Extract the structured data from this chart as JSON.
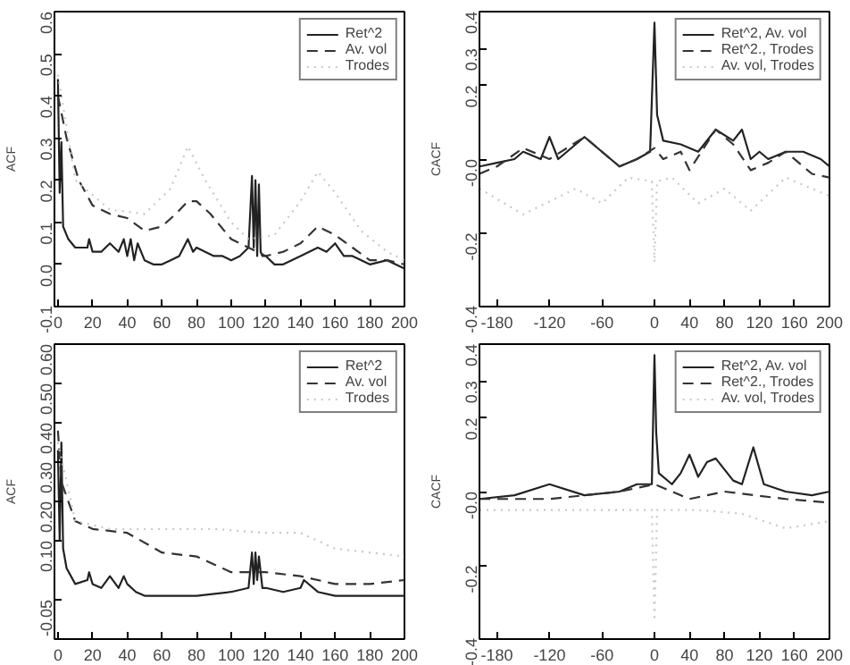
{
  "chart_data": [
    {
      "type": "line",
      "ylabel": "ACF",
      "xlim": [
        -2,
        200
      ],
      "ylim": [
        -0.1,
        0.6
      ],
      "xticks": [
        0,
        20,
        40,
        60,
        80,
        100,
        120,
        140,
        160,
        180,
        200
      ],
      "yticks": [
        -0.1,
        {
          "value": 0,
          "label": "0.0"
        },
        0.1,
        0.2,
        0.3,
        0.4,
        0.5,
        0.6
      ],
      "legend": "top right",
      "grid": false,
      "series": [
        {
          "name": "Ret^2",
          "color": "#222222",
          "line_style": "solid",
          "x": [
            0,
            1,
            2,
            3,
            6,
            10,
            17,
            18,
            20,
            25,
            30,
            35,
            38,
            40,
            42,
            44,
            46,
            50,
            55,
            60,
            65,
            70,
            75,
            78,
            80,
            85,
            90,
            95,
            100,
            105,
            110,
            112,
            113,
            114,
            115,
            116,
            117,
            118,
            120,
            125,
            130,
            140,
            150,
            155,
            160,
            165,
            170,
            180,
            190,
            200
          ],
          "values": [
            0.44,
            0.17,
            0.29,
            0.09,
            0.06,
            0.04,
            0.04,
            0.06,
            0.03,
            0.03,
            0.05,
            0.03,
            0.06,
            0.02,
            0.06,
            0.01,
            0.05,
            0.01,
            0.0,
            0.0,
            0.01,
            0.02,
            0.06,
            0.03,
            0.04,
            0.03,
            0.02,
            0.02,
            0.01,
            0.02,
            0.04,
            0.21,
            0.04,
            0.2,
            0.02,
            0.19,
            0.03,
            0.02,
            0.02,
            0.0,
            0.0,
            0.02,
            0.04,
            0.03,
            0.05,
            0.02,
            0.02,
            0.0,
            0.01,
            -0.01
          ]
        },
        {
          "name": "Av. vol",
          "color": "#333333",
          "line_style": "dashed",
          "x": [
            0,
            5,
            12,
            20,
            30,
            40,
            50,
            60,
            68,
            75,
            80,
            88,
            100,
            110,
            120,
            130,
            140,
            150,
            160,
            170,
            180,
            190,
            200
          ],
          "values": [
            0.4,
            0.3,
            0.2,
            0.14,
            0.12,
            0.11,
            0.08,
            0.09,
            0.12,
            0.15,
            0.15,
            0.12,
            0.06,
            0.04,
            0.02,
            0.03,
            0.05,
            0.09,
            0.07,
            0.04,
            0.01,
            0.01,
            0.0
          ]
        },
        {
          "name": "Trodes",
          "color": "#c8c8c8",
          "line_style": "dotted",
          "x": [
            0,
            10,
            30,
            50,
            65,
            75,
            85,
            100,
            110,
            125,
            140,
            150,
            160,
            175,
            190,
            200
          ],
          "values": [
            0.45,
            0.2,
            0.13,
            0.12,
            0.18,
            0.28,
            0.2,
            0.1,
            0.06,
            0.07,
            0.15,
            0.22,
            0.17,
            0.08,
            0.03,
            0.01
          ]
        }
      ]
    },
    {
      "type": "line",
      "ylabel": "CACF",
      "xlim": [
        -200,
        200
      ],
      "ylim": [
        -0.4,
        0.4
      ],
      "xticks": [
        -180,
        -120,
        -60,
        0,
        40,
        80,
        120,
        160,
        200
      ],
      "yticks": [
        -0.4,
        -0.2,
        {
          "value": 0,
          "label": "-0.0"
        },
        0.2,
        0.3,
        0.4
      ],
      "legend": "top right",
      "grid": false,
      "series": [
        {
          "name": "Ret^2, Av. vol",
          "color": "#222222",
          "line_style": "solid",
          "x": [
            -200,
            -180,
            -160,
            -150,
            -130,
            -120,
            -110,
            -90,
            -80,
            -60,
            -40,
            -20,
            -5,
            0,
            3,
            10,
            30,
            50,
            70,
            90,
            100,
            110,
            120,
            130,
            150,
            170,
            190,
            200
          ],
          "values": [
            -0.02,
            -0.01,
            0.0,
            0.02,
            0.0,
            0.06,
            0.0,
            0.04,
            0.06,
            0.02,
            -0.02,
            0.0,
            0.02,
            0.37,
            0.12,
            0.05,
            0.04,
            0.02,
            0.08,
            0.05,
            0.08,
            0.0,
            0.02,
            0.0,
            0.02,
            0.02,
            0.0,
            -0.02
          ]
        },
        {
          "name": "Ret^2., Trodes",
          "color": "#333333",
          "line_style": "dashed",
          "x": [
            -200,
            -180,
            -150,
            -120,
            -80,
            -40,
            -20,
            0,
            10,
            30,
            40,
            70,
            90,
            110,
            130,
            150,
            180,
            200
          ],
          "values": [
            -0.04,
            -0.02,
            0.03,
            0.0,
            0.06,
            -0.02,
            0.0,
            0.03,
            0.0,
            0.02,
            -0.03,
            0.08,
            0.04,
            -0.03,
            -0.01,
            0.02,
            -0.04,
            -0.05
          ]
        },
        {
          "name": "Av. vol, Trodes",
          "color": "#c8c8c8",
          "line_style": "dotted",
          "x": [
            -200,
            -150,
            -90,
            -60,
            -30,
            -3,
            0,
            3,
            20,
            50,
            80,
            110,
            150,
            200
          ],
          "values": [
            -0.08,
            -0.15,
            -0.08,
            -0.12,
            -0.05,
            -0.06,
            -0.28,
            -0.06,
            -0.05,
            -0.12,
            -0.08,
            -0.14,
            -0.05,
            -0.1
          ]
        }
      ]
    },
    {
      "type": "line",
      "ylabel": "ACF",
      "xlim": [
        -2,
        200
      ],
      "ylim": [
        -0.15,
        0.6
      ],
      "xticks": [
        0,
        20,
        40,
        60,
        80,
        100,
        120,
        140,
        160,
        180,
        200
      ],
      "yticks": [
        -0.05,
        {
          "value": 0.1,
          "label": "0.10"
        },
        {
          "value": 0.2,
          "label": "0.20"
        },
        {
          "value": 0.3,
          "label": "0.30"
        },
        {
          "value": 0.4,
          "label": "0.40"
        },
        {
          "value": 0.5,
          "label": "0.50"
        },
        {
          "value": 0.6,
          "label": "0.60"
        }
      ],
      "legend": "top right",
      "grid": false,
      "series": [
        {
          "name": "Ret^2",
          "color": "#222222",
          "line_style": "solid",
          "x": [
            0,
            1,
            2,
            3,
            5,
            10,
            17,
            18,
            20,
            25,
            30,
            35,
            38,
            40,
            45,
            50,
            60,
            80,
            100,
            110,
            112,
            113,
            114,
            115,
            116,
            118,
            120,
            130,
            140,
            142,
            150,
            160,
            180,
            200
          ],
          "values": [
            0.33,
            0.1,
            0.35,
            0.08,
            0.03,
            -0.01,
            0.0,
            0.02,
            -0.01,
            -0.02,
            0.01,
            -0.02,
            0.01,
            -0.01,
            -0.03,
            -0.04,
            -0.04,
            -0.04,
            -0.03,
            -0.02,
            0.07,
            -0.01,
            0.07,
            0.0,
            0.06,
            -0.02,
            -0.02,
            -0.03,
            -0.02,
            0.0,
            -0.03,
            -0.04,
            -0.04,
            -0.04
          ]
        },
        {
          "name": "Av. vol",
          "color": "#333333",
          "line_style": "dashed",
          "x": [
            0,
            2,
            10,
            20,
            40,
            60,
            80,
            100,
            120,
            140,
            160,
            180,
            200
          ],
          "values": [
            0.38,
            0.25,
            0.15,
            0.13,
            0.12,
            0.07,
            0.06,
            0.02,
            0.02,
            0.01,
            -0.01,
            -0.01,
            0.0
          ]
        },
        {
          "name": "Trodes",
          "color": "#c8c8c8",
          "line_style": "dotted",
          "x": [
            0,
            10,
            30,
            60,
            90,
            120,
            140,
            160,
            180,
            200
          ],
          "values": [
            0.35,
            0.15,
            0.13,
            0.13,
            0.13,
            0.12,
            0.12,
            0.08,
            0.07,
            0.06
          ]
        }
      ]
    },
    {
      "type": "line",
      "ylabel": "CACF",
      "xlim": [
        -200,
        200
      ],
      "ylim": [
        -0.4,
        0.4
      ],
      "xticks": [
        -180,
        -120,
        -60,
        0,
        40,
        80,
        120,
        160,
        200
      ],
      "yticks": [
        -0.4,
        -0.2,
        {
          "value": 0,
          "label": "-0.0"
        },
        0.2,
        0.3,
        0.4
      ],
      "legend": "top right",
      "grid": false,
      "series": [
        {
          "name": "Ret^2, Av. vol",
          "color": "#222222",
          "line_style": "solid",
          "x": [
            -200,
            -160,
            -120,
            -80,
            -40,
            -20,
            -3,
            0,
            2,
            5,
            20,
            30,
            40,
            50,
            60,
            70,
            90,
            100,
            113,
            125,
            150,
            180,
            200
          ],
          "values": [
            -0.02,
            -0.01,
            0.02,
            -0.01,
            0.0,
            0.02,
            0.02,
            0.37,
            0.16,
            0.05,
            0.02,
            0.05,
            0.1,
            0.04,
            0.08,
            0.09,
            0.03,
            0.02,
            0.12,
            0.02,
            0.0,
            -0.01,
            0.0
          ]
        },
        {
          "name": "Ret^2., Trodes",
          "color": "#333333",
          "line_style": "dashed",
          "x": [
            -200,
            -120,
            -40,
            0,
            40,
            80,
            150,
            200
          ],
          "values": [
            -0.02,
            -0.02,
            0.0,
            0.02,
            -0.02,
            0.0,
            -0.02,
            -0.03
          ]
        },
        {
          "name": "Av. vol, Trodes",
          "color": "#c8c8c8",
          "line_style": "dotted",
          "x": [
            -200,
            -100,
            -3,
            0,
            3,
            50,
            100,
            150,
            200
          ],
          "values": [
            -0.05,
            -0.05,
            -0.05,
            -0.35,
            -0.05,
            -0.05,
            -0.06,
            -0.1,
            -0.08
          ]
        }
      ]
    }
  ]
}
